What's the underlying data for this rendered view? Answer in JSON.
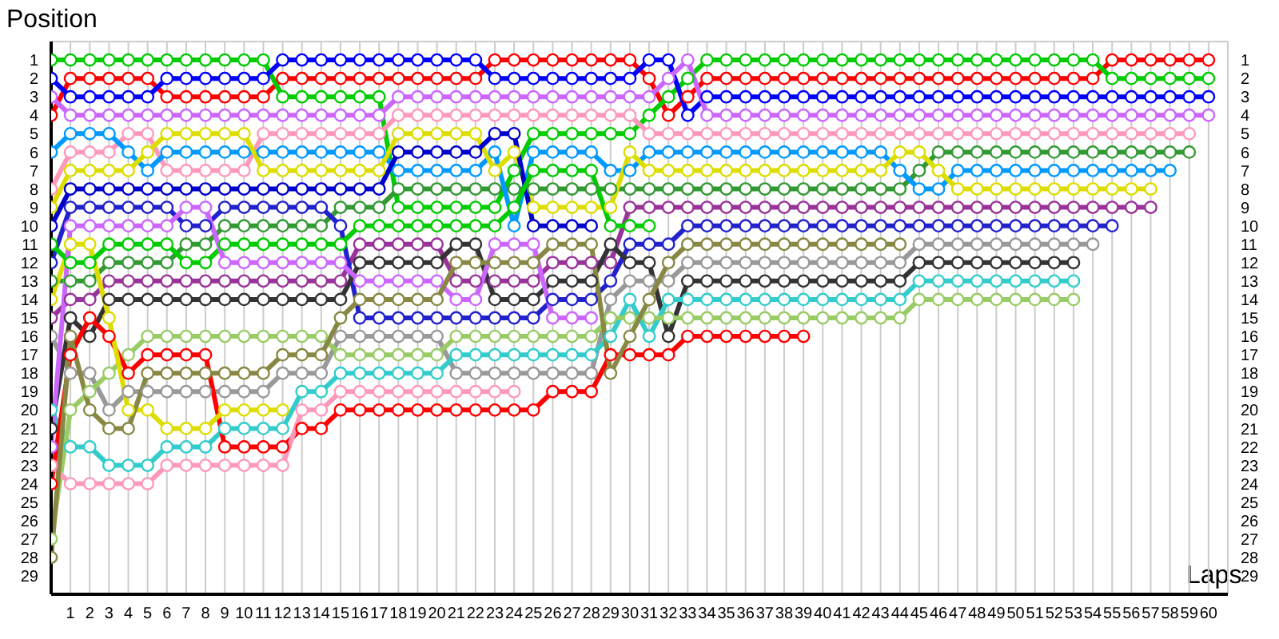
{
  "chart_data": {
    "type": "line",
    "ylabel": "Position",
    "xlabel": "Laps",
    "x": [
      0,
      1,
      2,
      3,
      4,
      5,
      6,
      7,
      8,
      9,
      10,
      11,
      12,
      13,
      14,
      15,
      16,
      17,
      18,
      19,
      20,
      21,
      22,
      23,
      24,
      25,
      26,
      27,
      28,
      29,
      30,
      31,
      32,
      33,
      34,
      35,
      36,
      37,
      38,
      39,
      40,
      41,
      42,
      43,
      44,
      45,
      46,
      47,
      48,
      49,
      50,
      51,
      52,
      53,
      54,
      55,
      56,
      57,
      58,
      59,
      60
    ],
    "xlim": [
      0,
      61
    ],
    "xticks": [
      1,
      2,
      3,
      4,
      5,
      6,
      7,
      8,
      9,
      10,
      11,
      12,
      13,
      14,
      15,
      16,
      17,
      18,
      19,
      20,
      21,
      22,
      23,
      24,
      25,
      26,
      27,
      28,
      29,
      30,
      31,
      32,
      33,
      34,
      35,
      36,
      37,
      38,
      39,
      40,
      41,
      42,
      43,
      44,
      45,
      46,
      47,
      48,
      49,
      50,
      51,
      52,
      53,
      54,
      55,
      56,
      57,
      58,
      59,
      60
    ],
    "ylim": [
      30,
      0
    ],
    "yticks": [
      1,
      2,
      3,
      4,
      5,
      6,
      7,
      8,
      9,
      10,
      11,
      12,
      13,
      14,
      15,
      16,
      17,
      18,
      19,
      20,
      21,
      22,
      23,
      24,
      25,
      26,
      27,
      28,
      29
    ],
    "y2lim": [
      30,
      0
    ],
    "y2ticks": [
      1,
      2,
      3,
      4,
      5,
      6,
      7,
      8,
      9,
      10,
      11,
      12,
      13,
      14,
      15,
      16,
      17,
      18,
      19,
      20,
      21,
      22,
      23,
      24,
      25,
      26,
      27,
      28,
      29
    ],
    "grid": true,
    "legend": false,
    "marker": "circle",
    "line_style": "solid",
    "series": [
      {
        "color": "#ff0000",
        "values": [
          4,
          2,
          2,
          2,
          2,
          2,
          3,
          3,
          3,
          3,
          3,
          3,
          2,
          2,
          2,
          2,
          2,
          2,
          2,
          2,
          2,
          2,
          2,
          1,
          1,
          1,
          1,
          1,
          1,
          1,
          1,
          2,
          4,
          3,
          2,
          2,
          2,
          2,
          2,
          2,
          2,
          2,
          2,
          2,
          2,
          2,
          2,
          2,
          2,
          2,
          2,
          2,
          2,
          2,
          2,
          1,
          1,
          1,
          1,
          1,
          1
        ]
      },
      {
        "color": "#00cc00",
        "values": [
          1,
          1,
          1,
          1,
          1,
          1,
          1,
          1,
          1,
          1,
          1,
          1,
          3,
          3,
          3,
          3,
          3,
          3,
          9,
          9,
          9,
          9,
          9,
          9,
          7,
          5,
          5,
          5,
          5,
          5,
          5,
          4,
          3,
          2,
          1,
          1,
          1,
          1,
          1,
          1,
          1,
          1,
          1,
          1,
          1,
          1,
          1,
          1,
          1,
          1,
          1,
          1,
          1,
          1,
          1,
          2,
          2,
          2,
          2,
          2,
          2
        ]
      },
      {
        "color": "#0000ff",
        "values": [
          2,
          3,
          3,
          3,
          3,
          3,
          2,
          2,
          2,
          2,
          2,
          2,
          1,
          1,
          1,
          1,
          1,
          1,
          1,
          1,
          1,
          1,
          1,
          2,
          2,
          2,
          2,
          2,
          2,
          2,
          2,
          1,
          1,
          4,
          3,
          3,
          3,
          3,
          3,
          3,
          3,
          3,
          3,
          3,
          3,
          3,
          3,
          3,
          3,
          3,
          3,
          3,
          3,
          3,
          3,
          3,
          3,
          3,
          3,
          3,
          3
        ]
      },
      {
        "color": "#cc66ff",
        "values": [
          3,
          4,
          4,
          4,
          4,
          4,
          4,
          4,
          4,
          4,
          4,
          4,
          4,
          4,
          4,
          4,
          4,
          4,
          3,
          3,
          3,
          3,
          3,
          3,
          3,
          3,
          3,
          3,
          3,
          3,
          3,
          3,
          2,
          1,
          4,
          4,
          4,
          4,
          4,
          4,
          4,
          4,
          4,
          4,
          4,
          4,
          4,
          4,
          4,
          4,
          4,
          4,
          4,
          4,
          4,
          4,
          4,
          4,
          4,
          4,
          4
        ]
      },
      {
        "color": "#ff99bb",
        "values": [
          8,
          6,
          6,
          6,
          5,
          5,
          7,
          7,
          7,
          7,
          7,
          5,
          5,
          5,
          5,
          5,
          5,
          5,
          4,
          4,
          4,
          4,
          4,
          4,
          4,
          4,
          4,
          4,
          4,
          4,
          4,
          5,
          5,
          5,
          5,
          5,
          5,
          5,
          5,
          5,
          5,
          5,
          5,
          5,
          5,
          5,
          5,
          5,
          5,
          5,
          5,
          5,
          5,
          5,
          5,
          5,
          5,
          5,
          5,
          5,
          null
        ]
      },
      {
        "color": "#339933",
        "values": [
          13,
          13,
          13,
          12,
          12,
          12,
          12,
          11,
          11,
          10,
          10,
          10,
          10,
          10,
          10,
          9,
          9,
          9,
          8,
          8,
          8,
          8,
          8,
          8,
          8,
          8,
          8,
          8,
          8,
          8,
          8,
          8,
          8,
          8,
          8,
          8,
          8,
          8,
          8,
          8,
          8,
          8,
          8,
          8,
          8,
          7,
          6,
          6,
          6,
          6,
          6,
          6,
          6,
          6,
          6,
          6,
          6,
          6,
          6,
          6,
          null
        ]
      },
      {
        "color": "#0099ff",
        "values": [
          6,
          5,
          5,
          5,
          6,
          7,
          6,
          6,
          6,
          6,
          6,
          6,
          6,
          6,
          6,
          6,
          6,
          6,
          7,
          7,
          7,
          7,
          7,
          6,
          10,
          6,
          6,
          6,
          6,
          7,
          7,
          6,
          6,
          6,
          6,
          6,
          6,
          6,
          6,
          6,
          6,
          6,
          6,
          6,
          7,
          8,
          8,
          7,
          7,
          7,
          7,
          7,
          7,
          7,
          7,
          7,
          7,
          7,
          7,
          null,
          null
        ]
      },
      {
        "color": "#dddd00",
        "values": [
          9,
          7,
          7,
          7,
          7,
          6,
          5,
          5,
          5,
          5,
          5,
          7,
          7,
          7,
          7,
          7,
          7,
          7,
          5,
          5,
          5,
          5,
          5,
          7,
          6,
          9,
          9,
          9,
          9,
          9,
          6,
          7,
          7,
          7,
          7,
          7,
          7,
          7,
          7,
          7,
          7,
          7,
          7,
          7,
          6,
          6,
          7,
          8,
          8,
          8,
          8,
          8,
          8,
          8,
          8,
          8,
          8,
          8,
          null,
          null,
          null
        ]
      },
      {
        "color": "#993399",
        "values": [
          15,
          14,
          14,
          13,
          13,
          13,
          13,
          13,
          13,
          13,
          13,
          13,
          13,
          13,
          13,
          13,
          11,
          11,
          11,
          11,
          11,
          13,
          13,
          13,
          13,
          13,
          12,
          12,
          12,
          12,
          9,
          9,
          9,
          9,
          9,
          9,
          9,
          9,
          9,
          9,
          9,
          9,
          9,
          9,
          9,
          9,
          9,
          9,
          9,
          9,
          9,
          9,
          9,
          9,
          9,
          9,
          9,
          9,
          null,
          null,
          null
        ]
      },
      {
        "color": "#2222cc",
        "values": [
          12,
          9,
          9,
          9,
          9,
          9,
          9,
          10,
          10,
          9,
          9,
          9,
          9,
          9,
          9,
          10,
          15,
          15,
          15,
          15,
          15,
          15,
          15,
          15,
          15,
          15,
          14,
          14,
          14,
          13,
          11,
          11,
          11,
          10,
          10,
          10,
          10,
          10,
          10,
          10,
          10,
          10,
          10,
          10,
          10,
          10,
          10,
          10,
          10,
          10,
          10,
          10,
          10,
          10,
          10,
          10,
          null,
          null,
          null,
          null,
          null
        ]
      },
      {
        "color": "#0000cc",
        "values": [
          10,
          8,
          8,
          8,
          8,
          8,
          8,
          8,
          8,
          8,
          8,
          8,
          8,
          8,
          8,
          8,
          8,
          8,
          6,
          6,
          6,
          6,
          6,
          5,
          5,
          10,
          10,
          10,
          10,
          null,
          null,
          null,
          null,
          null,
          null,
          null,
          null,
          null,
          null,
          null,
          null,
          null,
          null,
          null,
          null,
          null,
          null,
          null,
          null,
          null,
          null,
          null,
          null,
          null,
          null,
          null,
          null,
          null,
          null,
          null,
          null
        ]
      },
      {
        "color": "#999999",
        "values": [
          16,
          18,
          18,
          20,
          19,
          19,
          19,
          19,
          19,
          19,
          19,
          19,
          18,
          18,
          18,
          16,
          16,
          16,
          16,
          16,
          16,
          18,
          18,
          18,
          18,
          18,
          18,
          18,
          18,
          14,
          13,
          13,
          13,
          12,
          12,
          12,
          12,
          12,
          12,
          12,
          12,
          12,
          12,
          12,
          12,
          11,
          11,
          11,
          11,
          11,
          11,
          11,
          11,
          11,
          11,
          null,
          null,
          null,
          null,
          null,
          null
        ]
      },
      {
        "color": "#333333",
        "values": [
          21,
          15,
          16,
          14,
          14,
          14,
          14,
          14,
          14,
          14,
          14,
          14,
          14,
          14,
          14,
          14,
          12,
          12,
          12,
          12,
          12,
          11,
          11,
          14,
          14,
          14,
          13,
          13,
          13,
          11,
          12,
          12,
          16,
          13,
          13,
          13,
          13,
          13,
          13,
          13,
          13,
          13,
          13,
          13,
          13,
          12,
          12,
          12,
          12,
          12,
          12,
          12,
          12,
          12,
          null,
          null,
          null,
          null,
          null,
          null,
          null
        ]
      },
      {
        "color": "#33cccc",
        "values": [
          20,
          22,
          22,
          23,
          23,
          23,
          22,
          22,
          22,
          21,
          21,
          21,
          21,
          19,
          19,
          18,
          18,
          18,
          18,
          18,
          18,
          17,
          17,
          17,
          17,
          17,
          17,
          17,
          17,
          16,
          14,
          16,
          14,
          14,
          14,
          14,
          14,
          14,
          14,
          14,
          14,
          14,
          14,
          14,
          14,
          13,
          13,
          13,
          13,
          13,
          13,
          13,
          13,
          13,
          null,
          null,
          null,
          null,
          null,
          null,
          null
        ]
      },
      {
        "color": "#99cc66",
        "values": [
          27,
          20,
          19,
          18,
          17,
          16,
          16,
          16,
          16,
          16,
          16,
          16,
          16,
          16,
          16,
          17,
          17,
          17,
          17,
          17,
          17,
          16,
          16,
          16,
          16,
          16,
          16,
          16,
          16,
          15,
          15,
          15,
          15,
          15,
          15,
          15,
          15,
          15,
          15,
          15,
          15,
          15,
          15,
          15,
          15,
          14,
          14,
          14,
          14,
          14,
          14,
          14,
          14,
          14,
          null,
          null,
          null,
          null,
          null,
          null,
          null
        ]
      },
      {
        "color": "#ff0000",
        "values": [
          24,
          17,
          15,
          16,
          18,
          17,
          17,
          17,
          17,
          22,
          22,
          22,
          22,
          21,
          21,
          20,
          20,
          20,
          20,
          20,
          20,
          20,
          20,
          20,
          20,
          20,
          19,
          19,
          19,
          17,
          17,
          17,
          17,
          16,
          16,
          16,
          16,
          16,
          16,
          16,
          null,
          null,
          null,
          null,
          null,
          null,
          null,
          null,
          null,
          null,
          null,
          null,
          null,
          null,
          null,
          null,
          null,
          null,
          null,
          null,
          null
        ]
      },
      {
        "color": "#ff99bb",
        "values": [
          23,
          24,
          24,
          24,
          24,
          24,
          23,
          23,
          23,
          23,
          23,
          23,
          23,
          20,
          20,
          19,
          19,
          19,
          19,
          19,
          19,
          19,
          19,
          19,
          19,
          null,
          null,
          null,
          null,
          null,
          null,
          null,
          null,
          null,
          null,
          null,
          null,
          null,
          null,
          null,
          null,
          null,
          null,
          null,
          null,
          null,
          null,
          null,
          null,
          null,
          null,
          null,
          null,
          null,
          null,
          null,
          null,
          null,
          null,
          null,
          null
        ]
      },
      {
        "color": "#dddd00",
        "values": [
          14,
          11,
          11,
          15,
          20,
          20,
          21,
          21,
          21,
          20,
          20,
          20,
          20,
          null,
          null,
          null,
          null,
          null,
          null,
          null,
          null,
          null,
          null,
          null,
          null,
          null,
          null,
          null,
          null,
          null,
          null,
          null,
          null,
          null,
          null,
          null,
          null,
          null,
          null,
          null,
          null,
          null,
          null,
          null,
          null,
          null,
          null,
          null,
          null,
          null,
          null,
          null,
          null,
          null,
          null,
          null,
          null,
          null,
          null,
          null,
          null
        ]
      },
      {
        "color": "#00cc00",
        "values": [
          11,
          12,
          12,
          11,
          11,
          11,
          11,
          12,
          12,
          11,
          11,
          11,
          11,
          11,
          11,
          11,
          10,
          10,
          10,
          10,
          10,
          10,
          10,
          10,
          9,
          7,
          7,
          7,
          7,
          10,
          10,
          10,
          null,
          null,
          null,
          null,
          null,
          null,
          null,
          null,
          null,
          null,
          null,
          null,
          null,
          null,
          null,
          null,
          null,
          null,
          null,
          null,
          null,
          null,
          null,
          null,
          null,
          null,
          null,
          null,
          null
        ]
      },
      {
        "color": "#cc66ff",
        "values": [
          22,
          10,
          10,
          10,
          10,
          10,
          10,
          9,
          9,
          12,
          12,
          12,
          12,
          12,
          12,
          12,
          13,
          13,
          13,
          13,
          13,
          14,
          14,
          11,
          11,
          11,
          15,
          15,
          15,
          null,
          null,
          null,
          null,
          null,
          null,
          null,
          null,
          null,
          null,
          null,
          null,
          null,
          null,
          null,
          null,
          null,
          null,
          null,
          null,
          null,
          null,
          null,
          null,
          null,
          null,
          null,
          null,
          null,
          null,
          null,
          null
        ]
      },
      {
        "color": "#888844",
        "values": [
          28,
          16,
          20,
          21,
          21,
          18,
          18,
          18,
          18,
          18,
          18,
          18,
          17,
          17,
          17,
          15,
          14,
          14,
          14,
          14,
          14,
          12,
          12,
          12,
          12,
          12,
          11,
          11,
          11,
          18,
          16,
          14,
          12,
          11,
          11,
          11,
          11,
          11,
          11,
          11,
          11,
          11,
          11,
          11,
          11,
          null,
          null,
          null,
          null,
          null,
          null,
          null,
          null,
          null,
          null,
          null,
          null,
          null,
          null,
          null,
          null
        ]
      }
    ]
  }
}
